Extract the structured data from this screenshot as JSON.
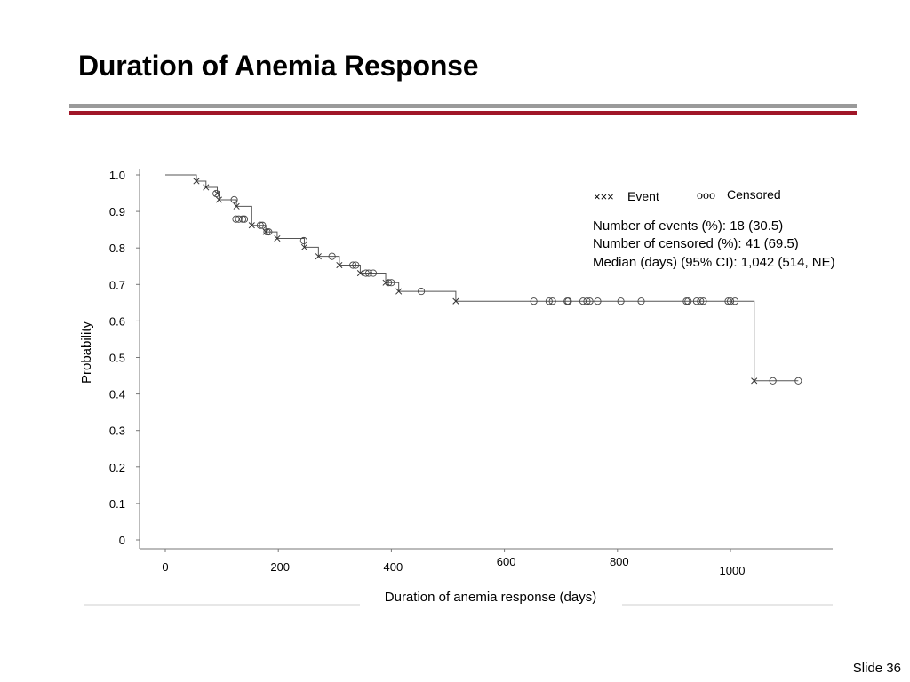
{
  "slide": {
    "title": "Duration of Anemia Response",
    "number_label": "Slide 36",
    "rule_colors": {
      "gray": "#9a9a9a",
      "red": "#a01628"
    }
  },
  "chart_data": {
    "type": "line",
    "step": true,
    "title": "",
    "xlabel": "Duration of anemia response (days)",
    "ylabel": "Probability",
    "xlim": [
      0,
      1180
    ],
    "ylim": [
      0,
      1.0
    ],
    "x_ticks": [
      "0",
      "200",
      "400",
      "600",
      "800",
      "1000"
    ],
    "x_tick_values": [
      0,
      200,
      400,
      600,
      800,
      1000
    ],
    "y_ticks": [
      "0",
      "0.1",
      "0.2",
      "0.3",
      "0.4",
      "0.5",
      "0.6",
      "0.7",
      "0.8",
      "0.9",
      "1.0"
    ],
    "y_tick_values": [
      0,
      0.1,
      0.2,
      0.3,
      0.4,
      0.5,
      0.6,
      0.7,
      0.8,
      0.9,
      1.0
    ],
    "grid": false,
    "line_color": "#555555",
    "legend": {
      "event_symbol": "×××",
      "event_label": "Event",
      "censored_symbol": "ooo",
      "censored_label": "Censored",
      "placement": "top-right"
    },
    "annotations": [
      "Number of events (%): 18 (30.5)",
      "Number of censored (%): 41 (69.5)",
      "Median (days) (95% CI): 1,042 (514, NE)"
    ],
    "curve": [
      [
        0,
        1.0
      ],
      [
        55,
        0.983
      ],
      [
        72,
        0.966
      ],
      [
        92,
        0.949
      ],
      [
        95,
        0.932
      ],
      [
        126,
        0.914
      ],
      [
        153,
        0.862
      ],
      [
        178,
        0.844
      ],
      [
        198,
        0.826
      ],
      [
        246,
        0.802
      ],
      [
        271,
        0.777
      ],
      [
        308,
        0.753
      ],
      [
        345,
        0.731
      ],
      [
        390,
        0.705
      ],
      [
        413,
        0.681
      ],
      [
        514,
        0.654
      ],
      [
        1042,
        0.436
      ],
      [
        1120,
        0.436
      ]
    ],
    "events": [
      [
        55,
        0.983
      ],
      [
        72,
        0.966
      ],
      [
        92,
        0.949
      ],
      [
        95,
        0.932
      ],
      [
        126,
        0.914
      ],
      [
        153,
        0.862
      ],
      [
        178,
        0.844
      ],
      [
        198,
        0.826
      ],
      [
        246,
        0.802
      ],
      [
        271,
        0.777
      ],
      [
        308,
        0.753
      ],
      [
        345,
        0.731
      ],
      [
        390,
        0.705
      ],
      [
        413,
        0.681
      ],
      [
        514,
        0.654
      ],
      [
        1042,
        0.436
      ]
    ],
    "censored": [
      [
        90,
        0.949
      ],
      [
        122,
        0.932
      ],
      [
        125,
        0.879
      ],
      [
        130,
        0.879
      ],
      [
        137,
        0.879
      ],
      [
        140,
        0.879
      ],
      [
        168,
        0.862
      ],
      [
        172,
        0.862
      ],
      [
        180,
        0.844
      ],
      [
        183,
        0.844
      ],
      [
        245,
        0.82
      ],
      [
        295,
        0.777
      ],
      [
        332,
        0.753
      ],
      [
        337,
        0.753
      ],
      [
        355,
        0.731
      ],
      [
        360,
        0.731
      ],
      [
        368,
        0.731
      ],
      [
        395,
        0.705
      ],
      [
        400,
        0.705
      ],
      [
        453,
        0.681
      ],
      [
        652,
        0.654
      ],
      [
        679,
        0.654
      ],
      [
        685,
        0.654
      ],
      [
        711,
        0.654
      ],
      [
        713,
        0.654
      ],
      [
        739,
        0.654
      ],
      [
        746,
        0.654
      ],
      [
        751,
        0.654
      ],
      [
        765,
        0.654
      ],
      [
        806,
        0.654
      ],
      [
        842,
        0.654
      ],
      [
        922,
        0.654
      ],
      [
        925,
        0.654
      ],
      [
        940,
        0.654
      ],
      [
        947,
        0.654
      ],
      [
        952,
        0.654
      ],
      [
        996,
        0.654
      ],
      [
        1000,
        0.654
      ],
      [
        1008,
        0.654
      ],
      [
        1075,
        0.436
      ],
      [
        1120,
        0.436
      ]
    ]
  }
}
